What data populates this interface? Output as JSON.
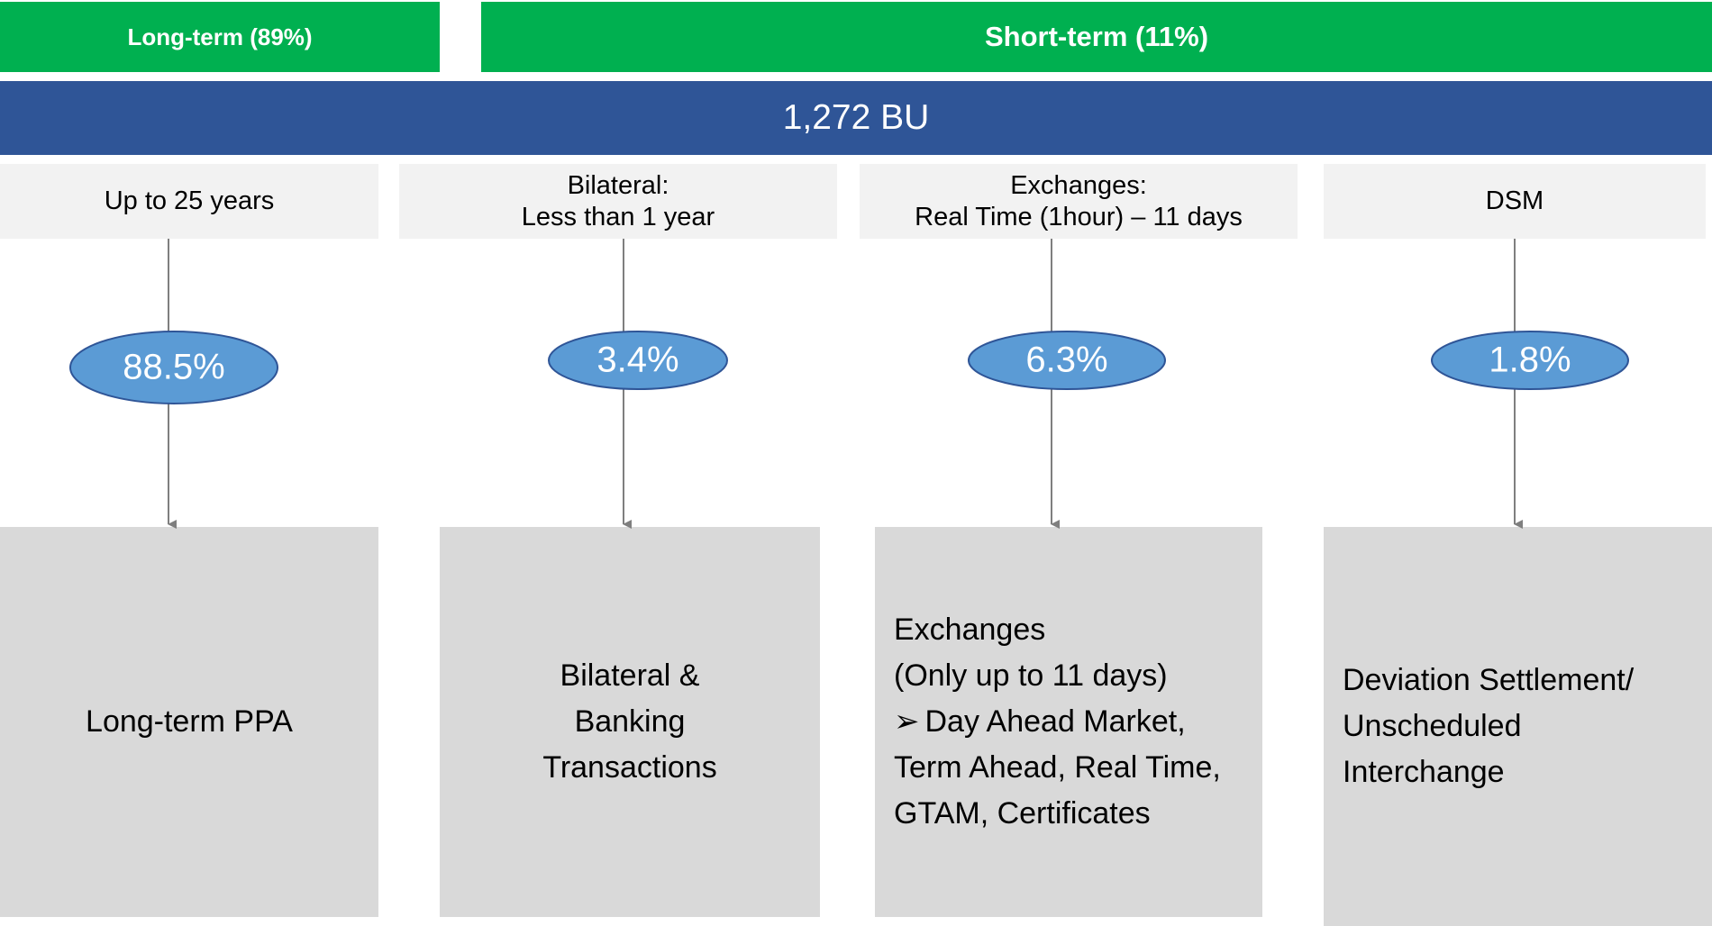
{
  "header": {
    "long_term": "Long-term (89%)",
    "short_term": "Short-term (11%)",
    "total": "1,272 BU"
  },
  "columns": [
    {
      "period": [
        "Up to 25 years"
      ],
      "share": "88.5%",
      "box": [
        "Long-term PPA"
      ]
    },
    {
      "period": [
        "Bilateral:",
        "Less than 1 year"
      ],
      "share": "3.4%",
      "box": [
        "Bilateral  &",
        "Banking",
        "Transactions"
      ]
    },
    {
      "period": [
        "Exchanges:",
        "Real Time (1hour) – 11 days"
      ],
      "share": "6.3%",
      "box": [
        "Exchanges",
        "(Only up to 11 days)"
      ],
      "bullet": "Day Ahead Market, Term Ahead, Real Time, GTAM, Certificates"
    },
    {
      "period": [
        "DSM"
      ],
      "share": "1.8%",
      "box": [
        "Deviation Settlement/ Unscheduled Interchange"
      ]
    }
  ]
}
